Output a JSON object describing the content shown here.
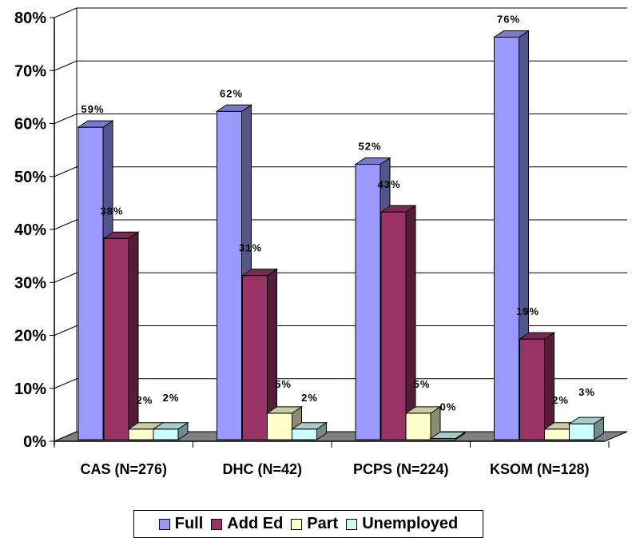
{
  "chart_data": {
    "type": "bar",
    "categories": [
      "CAS (N=276)",
      "DHC (N=42)",
      "PCPS (N=224)",
      "KSOM (N=128)"
    ],
    "series": [
      {
        "name": "Full",
        "values": [
          59,
          62,
          52,
          76
        ],
        "labels": [
          "59%",
          "62%",
          "52%",
          "76%"
        ]
      },
      {
        "name": "Add Ed",
        "values": [
          38,
          31,
          43,
          19
        ],
        "labels": [
          "38%",
          "31%",
          "43%",
          "19%"
        ]
      },
      {
        "name": "Part",
        "values": [
          2,
          5,
          5,
          2
        ],
        "labels": [
          "2%",
          "5%",
          "5%",
          "2%"
        ]
      },
      {
        "name": "Unemployed",
        "values": [
          2,
          2,
          0,
          3
        ],
        "labels": [
          "2%",
          "2%",
          "0%",
          "3%"
        ]
      }
    ],
    "ylim": [
      0,
      80
    ],
    "yticks": [
      0,
      10,
      20,
      30,
      40,
      50,
      60,
      70,
      80
    ],
    "ytick_labels": [
      "0%",
      "10%",
      "20%",
      "30%",
      "40%",
      "50%",
      "60%",
      "70%",
      "80%"
    ],
    "xlabel": "",
    "ylabel": "",
    "grid": true,
    "legend_position": "bottom",
    "colors": {
      "Full": "#9999ff",
      "Add Ed": "#993366",
      "Part": "#ffffcc",
      "Unemployed": "#ccffff",
      "floor": "#808080"
    }
  },
  "legend": {
    "items": [
      "Full",
      "Add Ed",
      "Part",
      "Unemployed"
    ]
  }
}
